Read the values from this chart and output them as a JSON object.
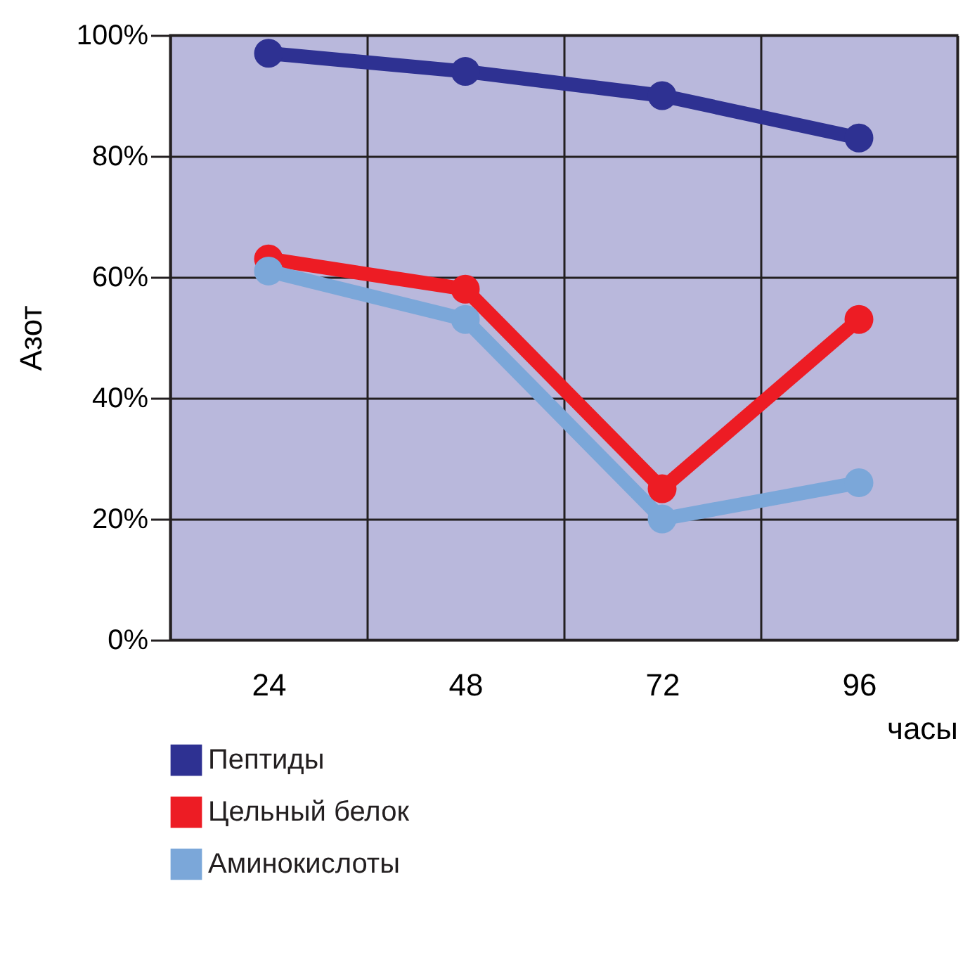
{
  "chart_data": {
    "type": "line",
    "xlabel": "часы",
    "ylabel": "Азот",
    "categories": [
      "24",
      "48",
      "72",
      "96"
    ],
    "series": [
      {
        "name": "Пептиды",
        "color": "#2e3192",
        "values": [
          97,
          94,
          90,
          83
        ]
      },
      {
        "name": "Цельный белок",
        "color": "#ed1c24",
        "values": [
          63,
          58,
          25,
          53
        ]
      },
      {
        "name": "Аминокислоты",
        "color": "#7ba7d9",
        "values": [
          61,
          53,
          20,
          26
        ]
      }
    ],
    "ylim": [
      0,
      100
    ],
    "yticks": [
      {
        "value": 0,
        "label": "0%"
      },
      {
        "value": 20,
        "label": "20%"
      },
      {
        "value": 40,
        "label": "40%"
      },
      {
        "value": 60,
        "label": "60%"
      },
      {
        "value": 80,
        "label": "80%"
      },
      {
        "value": 100,
        "label": "100%"
      }
    ],
    "grid": true,
    "legend": "bottom left",
    "marker": "circle",
    "line_style": "solid"
  }
}
